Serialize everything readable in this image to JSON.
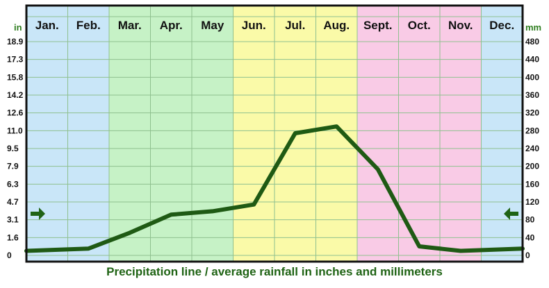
{
  "chart_data": {
    "type": "line",
    "caption": "Precipitation line / average rainfall in inches and millimeters",
    "categories": [
      "Jan.",
      "Feb.",
      "Mar.",
      "Apr.",
      "May",
      "Jun.",
      "Jul.",
      "Aug.",
      "Sept.",
      "Oct.",
      "Nov.",
      "Dec."
    ],
    "series": [
      {
        "values": [
          0.4,
          0.6,
          2.0,
          3.6,
          3.9,
          4.5,
          10.8,
          11.4,
          7.6,
          0.8,
          0.4,
          0.6
        ]
      }
    ],
    "left_axis": {
      "unit": "in",
      "ticks": [
        "0",
        "1.6",
        "3.1",
        "4.7",
        "6.3",
        "7.9",
        "9.5",
        "11.0",
        "12.6",
        "14.2",
        "15.8",
        "17.3",
        "18.9"
      ],
      "range": [
        0,
        18.9
      ]
    },
    "right_axis": {
      "unit": "mm",
      "ticks": [
        "0",
        "40",
        "80",
        "120",
        "160",
        "200",
        "240",
        "280",
        "320",
        "360",
        "400",
        "440",
        "480"
      ],
      "range": [
        0,
        480
      ]
    },
    "seasons": [
      {
        "months": [
          0,
          1
        ],
        "color": "#c9e6f8"
      },
      {
        "months": [
          2,
          3,
          4
        ],
        "color": "#c6f2c6"
      },
      {
        "months": [
          5,
          6,
          7
        ],
        "color": "#fafaa8"
      },
      {
        "months": [
          8,
          9,
          10
        ],
        "color": "#f9cbe6"
      },
      {
        "months": [
          11
        ],
        "color": "#c9e6f8"
      }
    ],
    "line_color": "#1f5a14",
    "marker_color": "#1f6314",
    "grid": true
  }
}
